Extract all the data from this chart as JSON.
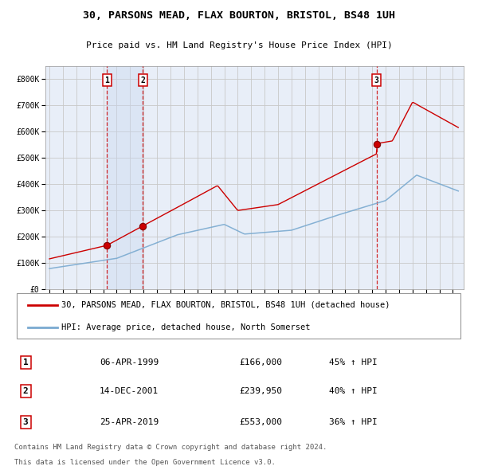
{
  "title": "30, PARSONS MEAD, FLAX BOURTON, BRISTOL, BS48 1UH",
  "subtitle": "Price paid vs. HM Land Registry's House Price Index (HPI)",
  "legend_line1": "30, PARSONS MEAD, FLAX BOURTON, BRISTOL, BS48 1UH (detached house)",
  "legend_line2": "HPI: Average price, detached house, North Somerset",
  "footnote1": "Contains HM Land Registry data © Crown copyright and database right 2024.",
  "footnote2": "This data is licensed under the Open Government Licence v3.0.",
  "table": [
    {
      "num": "1",
      "date": "06-APR-1999",
      "price": "£166,000",
      "hpi": "45% ↑ HPI"
    },
    {
      "num": "2",
      "date": "14-DEC-2001",
      "price": "£239,950",
      "hpi": "40% ↑ HPI"
    },
    {
      "num": "3",
      "date": "25-APR-2019",
      "price": "£553,000",
      "hpi": "36% ↑ HPI"
    }
  ],
  "purchases": [
    {
      "date_num": 1999.27,
      "price": 166000,
      "label": "1"
    },
    {
      "date_num": 2001.95,
      "price": 239950,
      "label": "2"
    },
    {
      "date_num": 2019.32,
      "price": 553000,
      "label": "3"
    }
  ],
  "vlines": [
    1999.27,
    2001.95,
    2019.32
  ],
  "vshade_start": 1999.27,
  "vshade_end": 2001.95,
  "red_color": "#cc0000",
  "blue_color": "#7aaad0",
  "chart_bg": "#e8eef8",
  "bg_color": "#ffffff",
  "grid_color": "#c8c8c8",
  "title_fontsize": 9.5,
  "subtitle_fontsize": 8,
  "legend_fontsize": 7.5,
  "tick_fontsize": 6,
  "table_fontsize": 8,
  "footnote_fontsize": 6.5,
  "ylim": [
    0,
    850000
  ],
  "xlim_start": 1994.7,
  "xlim_end": 2025.8
}
